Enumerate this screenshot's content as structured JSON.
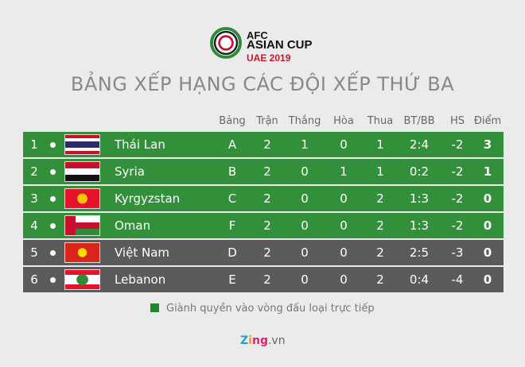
{
  "logo": {
    "line1": "AFC",
    "line2": "ASIAN CUP",
    "line3": "UAE 2019"
  },
  "title": "BẢNG XẾP HẠNG CÁC ĐỘI XẾP THỨ BA",
  "headers": [
    "Bảng",
    "Trận",
    "Thắng",
    "Hòa",
    "Thua",
    "BT/BB",
    "HS",
    "Điểm"
  ],
  "colors": {
    "qualified": "#33903a",
    "eliminated": "#5b5b5b"
  },
  "rows": [
    {
      "rank": "1",
      "flag": "thailand-flag",
      "team": "Thái Lan",
      "group": "A",
      "played": "2",
      "won": "1",
      "drawn": "0",
      "lost": "1",
      "goals": "2:4",
      "gd": "-2",
      "points": "3",
      "qualified": true
    },
    {
      "rank": "2",
      "flag": "syria-flag",
      "team": "Syria",
      "group": "B",
      "played": "2",
      "won": "0",
      "drawn": "1",
      "lost": "1",
      "goals": "0:2",
      "gd": "-2",
      "points": "1",
      "qualified": true
    },
    {
      "rank": "3",
      "flag": "kyrgyzstan-flag",
      "team": "Kyrgyzstan",
      "group": "C",
      "played": "2",
      "won": "0",
      "drawn": "0",
      "lost": "2",
      "goals": "1:3",
      "gd": "-2",
      "points": "0",
      "qualified": true
    },
    {
      "rank": "4",
      "flag": "oman-flag",
      "team": "Oman",
      "group": "F",
      "played": "2",
      "won": "0",
      "drawn": "0",
      "lost": "2",
      "goals": "1:3",
      "gd": "-2",
      "points": "0",
      "qualified": true
    },
    {
      "rank": "5",
      "flag": "vietnam-flag",
      "team": "Việt Nam",
      "group": "D",
      "played": "2",
      "won": "0",
      "drawn": "0",
      "lost": "2",
      "goals": "2:5",
      "gd": "-3",
      "points": "0",
      "qualified": false
    },
    {
      "rank": "6",
      "flag": "lebanon-flag",
      "team": "Lebanon",
      "group": "E",
      "played": "2",
      "won": "0",
      "drawn": "0",
      "lost": "2",
      "goals": "0:4",
      "gd": "-4",
      "points": "0",
      "qualified": false
    }
  ],
  "legend": "Giành quyền vào vòng đấu loại trực tiếp",
  "watermark": {
    "brand": "Zing",
    "suffix": ".vn"
  }
}
